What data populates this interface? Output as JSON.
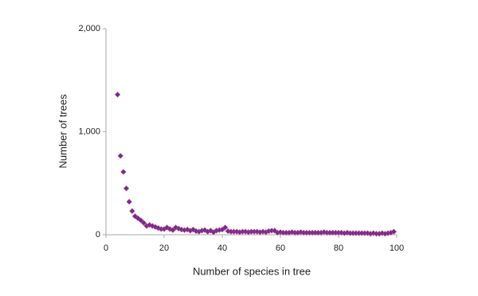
{
  "chart_data": {
    "type": "scatter",
    "x_label": "Number of species in tree",
    "y_label": "Number of trees",
    "x": [
      4,
      5,
      6,
      7,
      8,
      9,
      10,
      11,
      12,
      13,
      14,
      15,
      16,
      17,
      18,
      19,
      20,
      21,
      22,
      23,
      24,
      25,
      26,
      27,
      28,
      29,
      30,
      31,
      32,
      33,
      34,
      35,
      36,
      37,
      38,
      39,
      40,
      41,
      42,
      43,
      44,
      45,
      46,
      47,
      48,
      49,
      50,
      51,
      52,
      53,
      54,
      55,
      56,
      57,
      58,
      59,
      60,
      61,
      62,
      63,
      64,
      65,
      66,
      67,
      68,
      69,
      70,
      71,
      72,
      73,
      74,
      75,
      76,
      77,
      78,
      79,
      80,
      81,
      82,
      83,
      84,
      85,
      86,
      87,
      88,
      89,
      90,
      91,
      92,
      93,
      94,
      95,
      96,
      97,
      98,
      99
    ],
    "values": [
      1360,
      765,
      610,
      450,
      320,
      230,
      180,
      160,
      140,
      115,
      85,
      95,
      85,
      75,
      65,
      55,
      55,
      70,
      55,
      45,
      70,
      60,
      50,
      45,
      50,
      40,
      50,
      35,
      30,
      40,
      45,
      30,
      40,
      25,
      40,
      45,
      50,
      70,
      35,
      30,
      30,
      30,
      25,
      30,
      30,
      25,
      30,
      30,
      30,
      25,
      30,
      25,
      35,
      40,
      40,
      20,
      25,
      20,
      20,
      20,
      25,
      20,
      20,
      25,
      20,
      20,
      20,
      20,
      20,
      20,
      20,
      25,
      20,
      20,
      20,
      20,
      20,
      20,
      15,
      20,
      15,
      15,
      15,
      15,
      15,
      15,
      15,
      10,
      15,
      10,
      10,
      15,
      10,
      15,
      20,
      30
    ],
    "color": "#6b2d8f",
    "xlim": [
      0,
      100
    ],
    "xticks": [
      0,
      20,
      40,
      60,
      80,
      100
    ],
    "ylim": [
      0,
      2000
    ],
    "yticks": [
      0,
      {
        "value": 1000,
        "label": "1,000"
      },
      {
        "value": 2000,
        "label": "2,000"
      }
    ]
  }
}
